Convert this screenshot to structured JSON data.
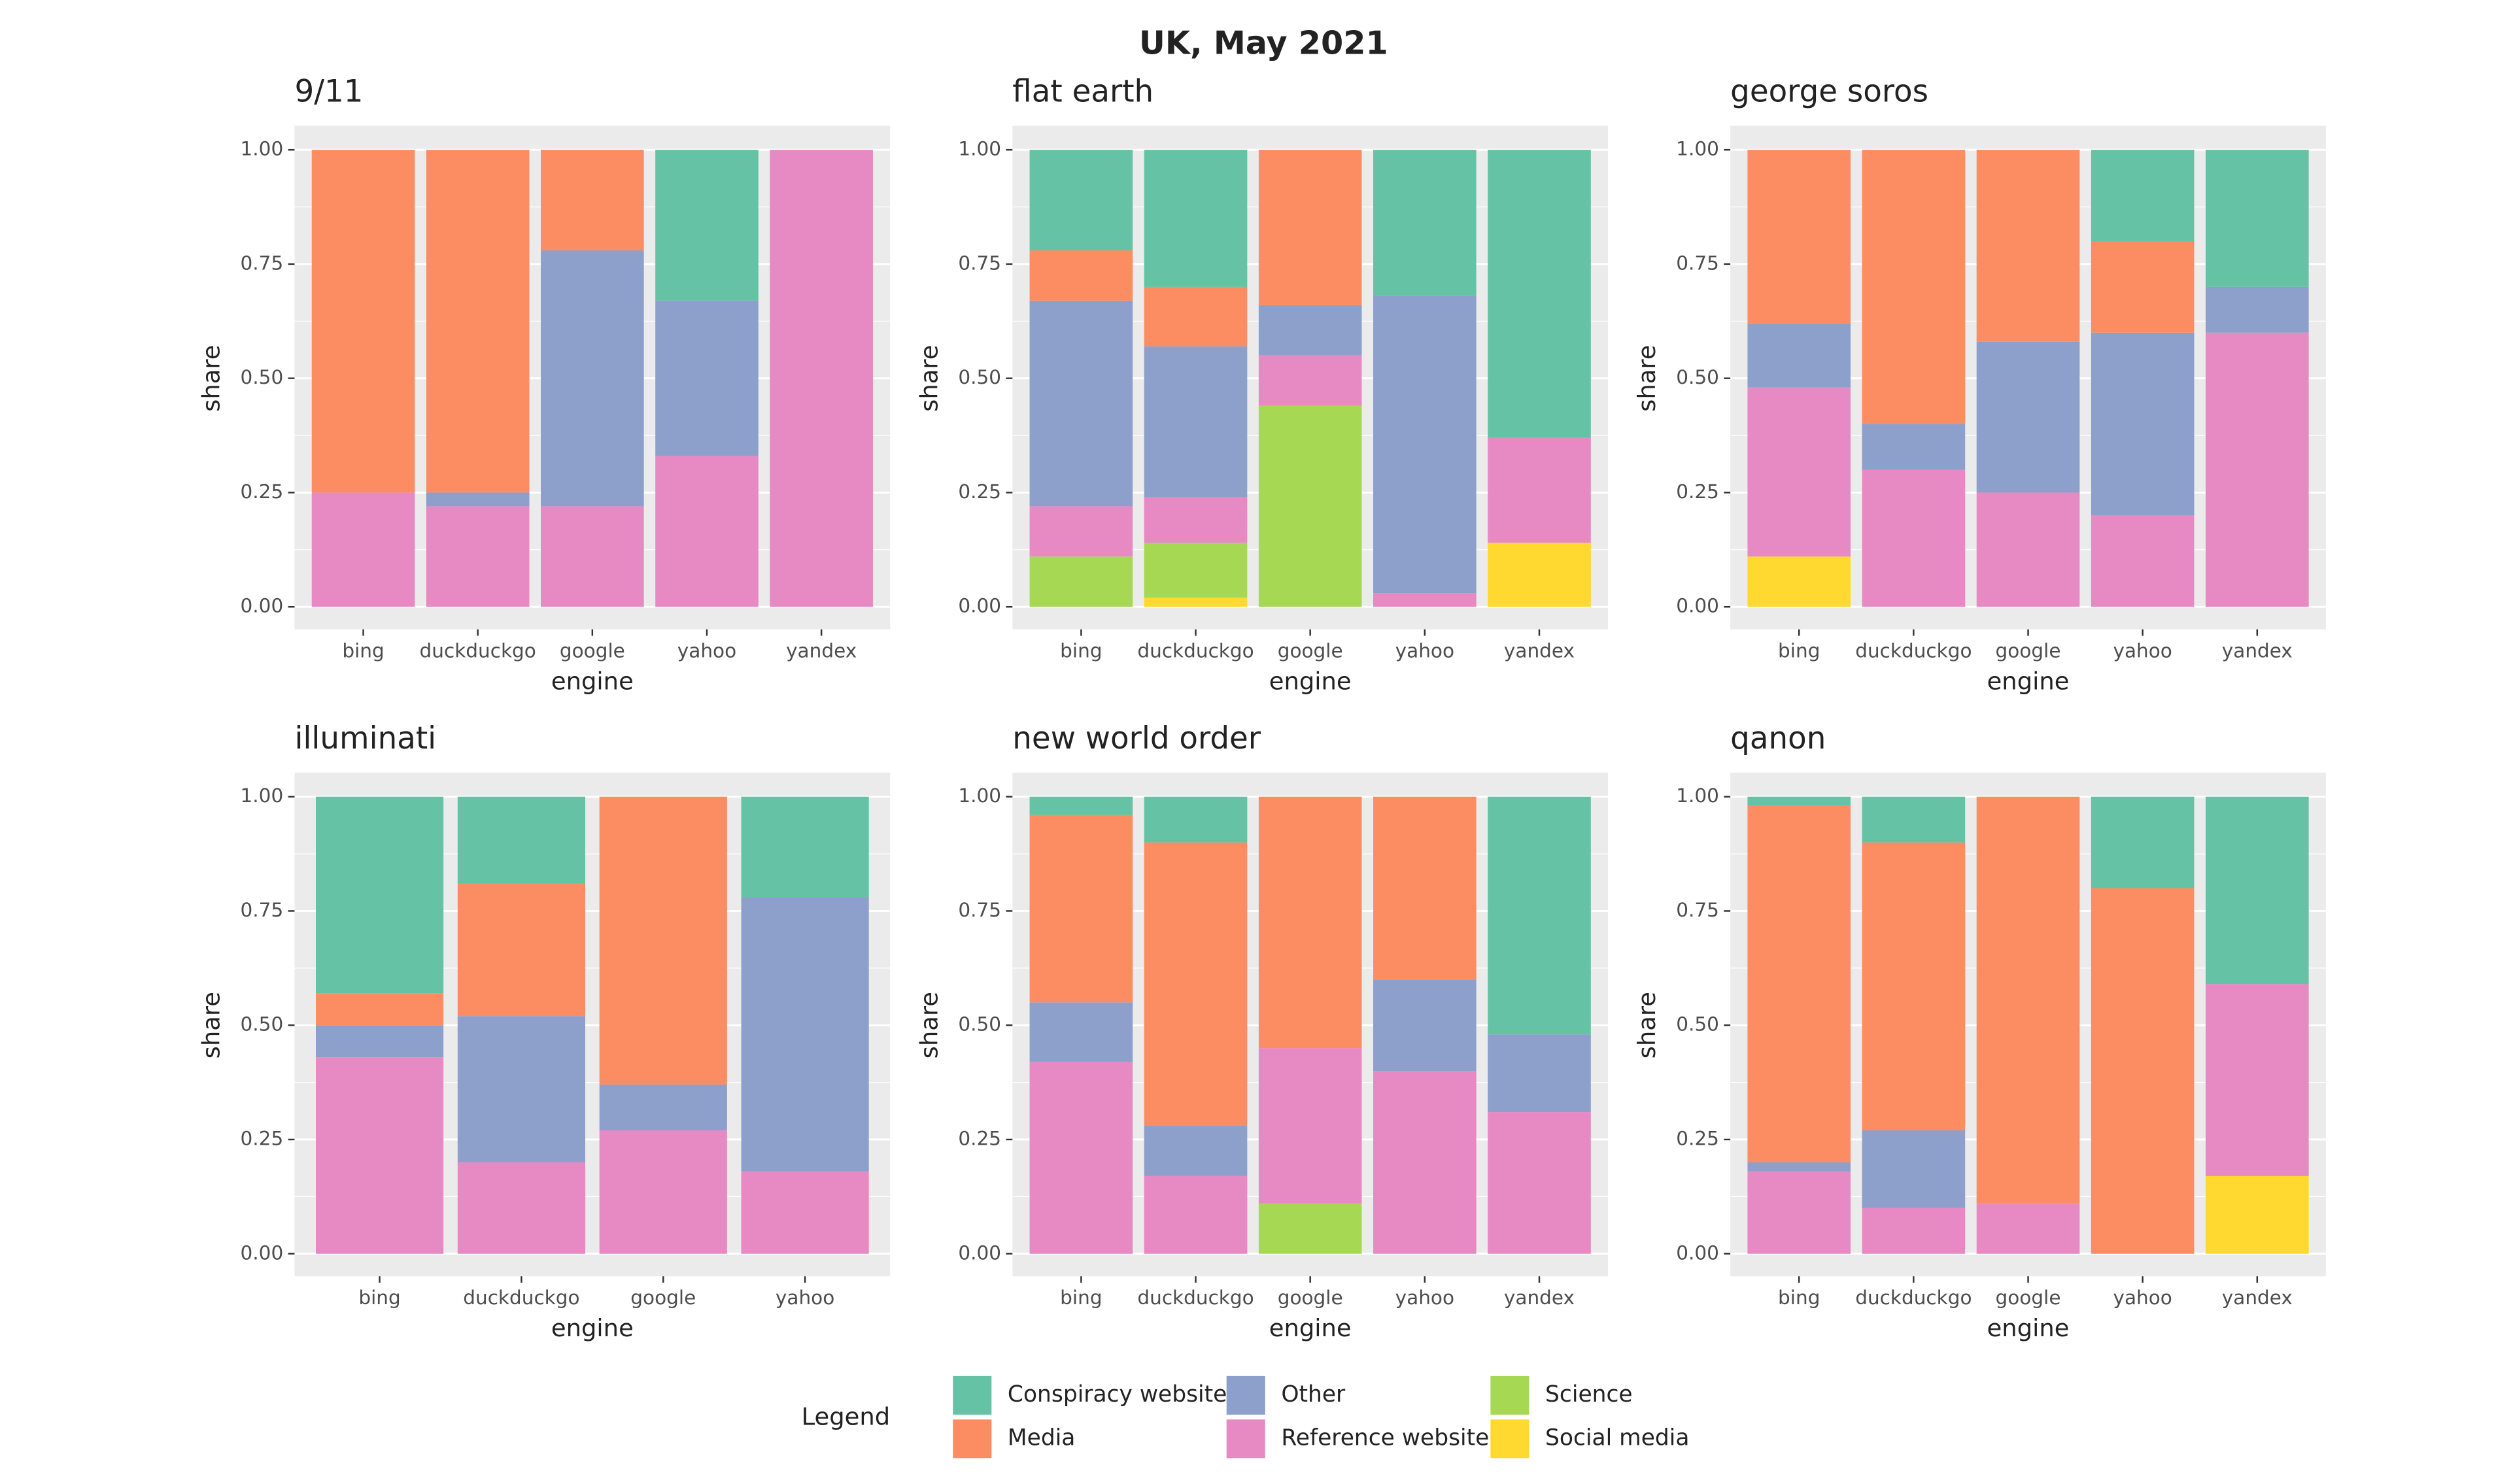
{
  "title": "UK, May 2021",
  "legend": {
    "title": "Legend"
  },
  "chart_data": [
    {
      "type": "bar",
      "stacked": true,
      "title": "9/11",
      "x_label": "engine",
      "y_label": "share",
      "categories": [
        "bing",
        "duckduckgo",
        "google",
        "yahoo",
        "yandex"
      ],
      "ylim": [
        0,
        1
      ],
      "grid": true,
      "yticks": [
        {
          "value": 0,
          "label": "0.00"
        },
        {
          "value": 0.25,
          "label": "0.25"
        },
        {
          "value": 0.5,
          "label": "0.50"
        },
        {
          "value": 0.75,
          "label": "0.75"
        },
        {
          "value": 1,
          "label": "1.00"
        }
      ],
      "series": [
        {
          "name": "Social media",
          "color": "#ffd92f",
          "values": [
            0,
            0,
            0,
            0,
            0
          ]
        },
        {
          "name": "Science",
          "color": "#a6d854",
          "values": [
            0,
            0,
            0,
            0,
            0
          ]
        },
        {
          "name": "Reference website",
          "color": "#e78ac3",
          "values": [
            0.25,
            0.22,
            0.22,
            0.33,
            1
          ]
        },
        {
          "name": "Other",
          "color": "#8da0cb",
          "values": [
            0,
            0.03,
            0.56,
            0.34,
            0
          ]
        },
        {
          "name": "Media",
          "color": "#fc8d62",
          "values": [
            0.75,
            0.75,
            0.22,
            0,
            0
          ]
        },
        {
          "name": "Conspiracy website",
          "color": "#66c2a5",
          "values": [
            0,
            0,
            0,
            0.33,
            0
          ]
        }
      ]
    },
    {
      "type": "bar",
      "stacked": true,
      "title": "flat earth",
      "x_label": "engine",
      "y_label": "share",
      "categories": [
        "bing",
        "duckduckgo",
        "google",
        "yahoo",
        "yandex"
      ],
      "ylim": [
        0,
        1
      ],
      "grid": true,
      "yticks": [
        {
          "value": 0,
          "label": "0.00"
        },
        {
          "value": 0.25,
          "label": "0.25"
        },
        {
          "value": 0.5,
          "label": "0.50"
        },
        {
          "value": 0.75,
          "label": "0.75"
        },
        {
          "value": 1,
          "label": "1.00"
        }
      ],
      "series": [
        {
          "name": "Social media",
          "color": "#ffd92f",
          "values": [
            0,
            0.02,
            0,
            0,
            0.14
          ]
        },
        {
          "name": "Science",
          "color": "#a6d854",
          "values": [
            0.11,
            0.12,
            0.44,
            0,
            0
          ]
        },
        {
          "name": "Reference website",
          "color": "#e78ac3",
          "values": [
            0.11,
            0.1,
            0.11,
            0.03,
            0.23
          ]
        },
        {
          "name": "Other",
          "color": "#8da0cb",
          "values": [
            0.45,
            0.33,
            0.11,
            0.65,
            0
          ]
        },
        {
          "name": "Media",
          "color": "#fc8d62",
          "values": [
            0.11,
            0.13,
            0.34,
            0,
            0
          ]
        },
        {
          "name": "Conspiracy website",
          "color": "#66c2a5",
          "values": [
            0.22,
            0.3,
            0,
            0.32,
            0.63
          ]
        }
      ]
    },
    {
      "type": "bar",
      "stacked": true,
      "title": "george soros",
      "x_label": "engine",
      "y_label": "share",
      "categories": [
        "bing",
        "duckduckgo",
        "google",
        "yahoo",
        "yandex"
      ],
      "ylim": [
        0,
        1
      ],
      "grid": true,
      "yticks": [
        {
          "value": 0,
          "label": "0.00"
        },
        {
          "value": 0.25,
          "label": "0.25"
        },
        {
          "value": 0.5,
          "label": "0.50"
        },
        {
          "value": 0.75,
          "label": "0.75"
        },
        {
          "value": 1,
          "label": "1.00"
        }
      ],
      "series": [
        {
          "name": "Social media",
          "color": "#ffd92f",
          "values": [
            0.11,
            0,
            0,
            0,
            0
          ]
        },
        {
          "name": "Science",
          "color": "#a6d854",
          "values": [
            0,
            0,
            0,
            0,
            0
          ]
        },
        {
          "name": "Reference website",
          "color": "#e78ac3",
          "values": [
            0.37,
            0.3,
            0.25,
            0.2,
            0.6
          ]
        },
        {
          "name": "Other",
          "color": "#8da0cb",
          "values": [
            0.14,
            0.1,
            0.33,
            0.4,
            0.1
          ]
        },
        {
          "name": "Media",
          "color": "#fc8d62",
          "values": [
            0.38,
            0.6,
            0.42,
            0.2,
            0
          ]
        },
        {
          "name": "Conspiracy website",
          "color": "#66c2a5",
          "values": [
            0,
            0,
            0,
            0.2,
            0.3
          ]
        }
      ]
    },
    {
      "type": "bar",
      "stacked": true,
      "title": "illuminati",
      "x_label": "engine",
      "y_label": "share",
      "categories": [
        "bing",
        "duckduckgo",
        "google",
        "yahoo"
      ],
      "ylim": [
        0,
        1
      ],
      "grid": true,
      "yticks": [
        {
          "value": 0,
          "label": "0.00"
        },
        {
          "value": 0.25,
          "label": "0.25"
        },
        {
          "value": 0.5,
          "label": "0.50"
        },
        {
          "value": 0.75,
          "label": "0.75"
        },
        {
          "value": 1,
          "label": "1.00"
        }
      ],
      "series": [
        {
          "name": "Social media",
          "color": "#ffd92f",
          "values": [
            0,
            0,
            0,
            0
          ]
        },
        {
          "name": "Science",
          "color": "#a6d854",
          "values": [
            0,
            0,
            0,
            0
          ]
        },
        {
          "name": "Reference website",
          "color": "#e78ac3",
          "values": [
            0.43,
            0.2,
            0.27,
            0.18
          ]
        },
        {
          "name": "Other",
          "color": "#8da0cb",
          "values": [
            0.07,
            0.32,
            0.1,
            0.6
          ]
        },
        {
          "name": "Media",
          "color": "#fc8d62",
          "values": [
            0.07,
            0.29,
            0.63,
            0
          ]
        },
        {
          "name": "Conspiracy website",
          "color": "#66c2a5",
          "values": [
            0.43,
            0.19,
            0,
            0.22
          ]
        }
      ]
    },
    {
      "type": "bar",
      "stacked": true,
      "title": "new world order",
      "x_label": "engine",
      "y_label": "share",
      "categories": [
        "bing",
        "duckduckgo",
        "google",
        "yahoo",
        "yandex"
      ],
      "ylim": [
        0,
        1
      ],
      "grid": true,
      "yticks": [
        {
          "value": 0,
          "label": "0.00"
        },
        {
          "value": 0.25,
          "label": "0.25"
        },
        {
          "value": 0.5,
          "label": "0.50"
        },
        {
          "value": 0.75,
          "label": "0.75"
        },
        {
          "value": 1,
          "label": "1.00"
        }
      ],
      "series": [
        {
          "name": "Social media",
          "color": "#ffd92f",
          "values": [
            0,
            0,
            0,
            0,
            0
          ]
        },
        {
          "name": "Science",
          "color": "#a6d854",
          "values": [
            0,
            0,
            0.11,
            0,
            0
          ]
        },
        {
          "name": "Reference website",
          "color": "#e78ac3",
          "values": [
            0.42,
            0.17,
            0.34,
            0.4,
            0.31
          ]
        },
        {
          "name": "Other",
          "color": "#8da0cb",
          "values": [
            0.13,
            0.11,
            0,
            0.2,
            0.17
          ]
        },
        {
          "name": "Media",
          "color": "#fc8d62",
          "values": [
            0.41,
            0.62,
            0.55,
            0.4,
            0
          ]
        },
        {
          "name": "Conspiracy website",
          "color": "#66c2a5",
          "values": [
            0.04,
            0.1,
            0,
            0,
            0.52
          ]
        }
      ]
    },
    {
      "type": "bar",
      "stacked": true,
      "title": "qanon",
      "x_label": "engine",
      "y_label": "share",
      "categories": [
        "bing",
        "duckduckgo",
        "google",
        "yahoo",
        "yandex"
      ],
      "ylim": [
        0,
        1
      ],
      "grid": true,
      "yticks": [
        {
          "value": 0,
          "label": "0.00"
        },
        {
          "value": 0.25,
          "label": "0.25"
        },
        {
          "value": 0.5,
          "label": "0.50"
        },
        {
          "value": 0.75,
          "label": "0.75"
        },
        {
          "value": 1,
          "label": "1.00"
        }
      ],
      "series": [
        {
          "name": "Social media",
          "color": "#ffd92f",
          "values": [
            0,
            0,
            0,
            0,
            0.17
          ]
        },
        {
          "name": "Science",
          "color": "#a6d854",
          "values": [
            0,
            0,
            0,
            0,
            0
          ]
        },
        {
          "name": "Reference website",
          "color": "#e78ac3",
          "values": [
            0.18,
            0.1,
            0.11,
            0,
            0.42
          ]
        },
        {
          "name": "Other",
          "color": "#8da0cb",
          "values": [
            0.02,
            0.17,
            0,
            0,
            0
          ]
        },
        {
          "name": "Media",
          "color": "#fc8d62",
          "values": [
            0.78,
            0.63,
            0.89,
            0.8,
            0
          ]
        },
        {
          "name": "Conspiracy website",
          "color": "#66c2a5",
          "values": [
            0.02,
            0.1,
            0,
            0.2,
            0.41
          ]
        }
      ]
    }
  ]
}
